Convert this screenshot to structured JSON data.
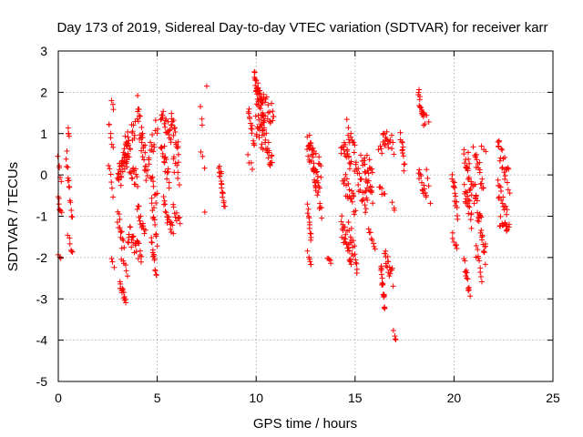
{
  "chart_data": {
    "type": "scatter",
    "title": "Day 173 of 2019, Sidereal Day-to-day VTEC variation (SDTVAR) for receiver karr",
    "xlabel": "GPS time / hours",
    "ylabel": "SDTVAR / TECUs",
    "xlim": [
      0,
      25
    ],
    "ylim": [
      -5,
      3
    ],
    "xticks": [
      0,
      5,
      10,
      15,
      20,
      25
    ],
    "yticks": [
      -5,
      -4,
      -3,
      -2,
      -1,
      0,
      1,
      2,
      3
    ],
    "grid": true,
    "marker": "+",
    "color": "#ff0000",
    "clusters": [
      {
        "x0": 0.0,
        "x1": 0.15,
        "y0": 0.4,
        "y1": -0.2,
        "wiggle": 0.1,
        "n": 5
      },
      {
        "x0": 0.0,
        "x1": 0.15,
        "y0": -0.6,
        "y1": -1.0,
        "wiggle": 0.1,
        "n": 7
      },
      {
        "x0": 0.0,
        "x1": 0.1,
        "y0": -1.9,
        "y1": -2.0,
        "wiggle": 0.05,
        "n": 3
      },
      {
        "x0": 0.5,
        "x1": 0.55,
        "y0": 1.1,
        "y1": 0.9,
        "wiggle": 0.05,
        "n": 4
      },
      {
        "x0": 0.4,
        "x1": 0.7,
        "y0": 0.5,
        "y1": -1.0,
        "wiggle": 0.2,
        "n": 14
      },
      {
        "x0": 0.5,
        "x1": 0.7,
        "y0": -1.5,
        "y1": -1.9,
        "wiggle": 0.1,
        "n": 6
      },
      {
        "x0": 2.55,
        "x1": 2.75,
        "y0": 1.3,
        "y1": 0.6,
        "wiggle": 0.15,
        "n": 6
      },
      {
        "x0": 2.7,
        "x1": 2.8,
        "y0": 1.75,
        "y1": 1.6,
        "wiggle": 0.05,
        "n": 3
      },
      {
        "x0": 2.55,
        "x1": 2.75,
        "y0": 0.2,
        "y1": -0.6,
        "wiggle": 0.15,
        "n": 6
      },
      {
        "x0": 2.7,
        "x1": 2.8,
        "y0": -2.0,
        "y1": -2.2,
        "wiggle": 0.05,
        "n": 3
      },
      {
        "x0": 3.0,
        "x1": 3.5,
        "y0": -0.2,
        "y1": 0.6,
        "wiggle": 0.35,
        "n": 34
      },
      {
        "x0": 3.3,
        "x1": 3.9,
        "y0": 0.6,
        "y1": 1.1,
        "wiggle": 0.3,
        "n": 20
      },
      {
        "x0": 3.5,
        "x1": 4.0,
        "y0": 0.5,
        "y1": -0.2,
        "wiggle": 0.3,
        "n": 20
      },
      {
        "x0": 3.0,
        "x1": 3.3,
        "y0": -1.0,
        "y1": -1.8,
        "wiggle": 0.2,
        "n": 14
      },
      {
        "x0": 3.2,
        "x1": 3.5,
        "y0": -2.0,
        "y1": -2.4,
        "wiggle": 0.1,
        "n": 6
      },
      {
        "x0": 3.1,
        "x1": 3.4,
        "y0": -2.6,
        "y1": -3.1,
        "wiggle": 0.1,
        "n": 14
      },
      {
        "x0": 3.5,
        "x1": 4.2,
        "y0": -1.4,
        "y1": -1.9,
        "wiggle": 0.25,
        "n": 26
      },
      {
        "x0": 4.0,
        "x1": 4.4,
        "y0": -0.8,
        "y1": -1.4,
        "wiggle": 0.2,
        "n": 14
      },
      {
        "x0": 4.0,
        "x1": 4.45,
        "y0": 1.6,
        "y1": 0.1,
        "wiggle": 0.35,
        "n": 28
      },
      {
        "x0": 4.5,
        "x1": 5.0,
        "y0": 0.2,
        "y1": 1.2,
        "wiggle": 0.3,
        "n": 16
      },
      {
        "x0": 4.6,
        "x1": 5.0,
        "y0": 0.1,
        "y1": -0.6,
        "wiggle": 0.2,
        "n": 10
      },
      {
        "x0": 4.7,
        "x1": 5.0,
        "y0": -0.6,
        "y1": -1.6,
        "wiggle": 0.2,
        "n": 12
      },
      {
        "x0": 4.7,
        "x1": 4.95,
        "y0": -1.6,
        "y1": -2.4,
        "wiggle": 0.15,
        "n": 14
      },
      {
        "x0": 5.2,
        "x1": 5.7,
        "y0": 1.5,
        "y1": 0.9,
        "wiggle": 0.2,
        "n": 20
      },
      {
        "x0": 5.2,
        "x1": 5.6,
        "y0": 0.8,
        "y1": -0.1,
        "wiggle": 0.25,
        "n": 18
      },
      {
        "x0": 5.7,
        "x1": 6.1,
        "y0": 1.4,
        "y1": 0.5,
        "wiggle": 0.25,
        "n": 18
      },
      {
        "x0": 5.8,
        "x1": 6.1,
        "y0": 0.4,
        "y1": -0.2,
        "wiggle": 0.2,
        "n": 8
      },
      {
        "x0": 5.3,
        "x1": 5.8,
        "y0": -0.7,
        "y1": -1.4,
        "wiggle": 0.2,
        "n": 18
      },
      {
        "x0": 5.8,
        "x1": 6.15,
        "y0": -0.8,
        "y1": -1.2,
        "wiggle": 0.15,
        "n": 10
      },
      {
        "x0": 7.2,
        "x1": 7.3,
        "y0": 1.6,
        "y1": 1.2,
        "wiggle": 0.1,
        "n": 3
      },
      {
        "x0": 7.5,
        "x1": 7.5,
        "y0": 2.15,
        "y1": 2.15,
        "wiggle": 0.0,
        "n": 1
      },
      {
        "x0": 7.2,
        "x1": 7.4,
        "y0": 0.6,
        "y1": 0.25,
        "wiggle": 0.1,
        "n": 3
      },
      {
        "x0": 7.4,
        "x1": 7.4,
        "y0": -0.9,
        "y1": -0.9,
        "wiggle": 0.0,
        "n": 1
      },
      {
        "x0": 8.1,
        "x1": 8.4,
        "y0": 0.3,
        "y1": -0.8,
        "wiggle": 0.2,
        "n": 20
      },
      {
        "x0": 9.6,
        "x1": 9.9,
        "y0": 1.6,
        "y1": 0.8,
        "wiggle": 0.2,
        "n": 14
      },
      {
        "x0": 9.6,
        "x1": 9.8,
        "y0": 0.4,
        "y1": 0.2,
        "wiggle": 0.1,
        "n": 4
      },
      {
        "x0": 9.9,
        "x1": 10.4,
        "y0": 2.3,
        "y1": 1.4,
        "wiggle": 0.3,
        "n": 34
      },
      {
        "x0": 10.0,
        "x1": 10.9,
        "y0": 1.9,
        "y1": 1.4,
        "wiggle": 0.3,
        "n": 30
      },
      {
        "x0": 10.0,
        "x1": 10.8,
        "y0": 1.2,
        "y1": 0.4,
        "wiggle": 0.35,
        "n": 40
      },
      {
        "x0": 12.6,
        "x1": 13.0,
        "y0": 1.0,
        "y1": -0.1,
        "wiggle": 0.3,
        "n": 20
      },
      {
        "x0": 12.6,
        "x1": 13.3,
        "y0": 0.7,
        "y1": 0.1,
        "wiggle": 0.3,
        "n": 20
      },
      {
        "x0": 12.9,
        "x1": 13.3,
        "y0": 0.1,
        "y1": -0.8,
        "wiggle": 0.25,
        "n": 18
      },
      {
        "x0": 12.6,
        "x1": 12.8,
        "y0": -0.8,
        "y1": -1.6,
        "wiggle": 0.15,
        "n": 12
      },
      {
        "x0": 12.6,
        "x1": 12.8,
        "y0": -1.9,
        "y1": -2.2,
        "wiggle": 0.1,
        "n": 6
      },
      {
        "x0": 13.6,
        "x1": 13.8,
        "y0": -2.0,
        "y1": -2.1,
        "wiggle": 0.05,
        "n": 5
      },
      {
        "x0": 14.3,
        "x1": 14.8,
        "y0": 0.8,
        "y1": 0.1,
        "wiggle": 0.25,
        "n": 20
      },
      {
        "x0": 14.6,
        "x1": 15.0,
        "y0": 1.2,
        "y1": 0.6,
        "wiggle": 0.2,
        "n": 12
      },
      {
        "x0": 14.4,
        "x1": 15.0,
        "y0": -0.1,
        "y1": -0.8,
        "wiggle": 0.25,
        "n": 24
      },
      {
        "x0": 14.3,
        "x1": 14.8,
        "y0": -1.2,
        "y1": -1.9,
        "wiggle": 0.3,
        "n": 26
      },
      {
        "x0": 14.7,
        "x1": 15.1,
        "y0": -1.3,
        "y1": -2.2,
        "wiggle": 0.25,
        "n": 18
      },
      {
        "x0": 15.0,
        "x1": 15.6,
        "y0": 0.2,
        "y1": -0.8,
        "wiggle": 0.3,
        "n": 24
      },
      {
        "x0": 15.3,
        "x1": 15.9,
        "y0": 0.6,
        "y1": -0.1,
        "wiggle": 0.3,
        "n": 16
      },
      {
        "x0": 15.5,
        "x1": 15.9,
        "y0": -0.1,
        "y1": -0.6,
        "wiggle": 0.2,
        "n": 12
      },
      {
        "x0": 15.7,
        "x1": 16.0,
        "y0": -1.3,
        "y1": -1.7,
        "wiggle": 0.1,
        "n": 8
      },
      {
        "x0": 16.2,
        "x1": 16.5,
        "y0": -0.2,
        "y1": -0.5,
        "wiggle": 0.1,
        "n": 6
      },
      {
        "x0": 16.2,
        "x1": 16.6,
        "y0": 0.5,
        "y1": 0.9,
        "wiggle": 0.15,
        "n": 8
      },
      {
        "x0": 16.4,
        "x1": 16.9,
        "y0": 0.9,
        "y1": 0.8,
        "wiggle": 0.2,
        "n": 14
      },
      {
        "x0": 16.3,
        "x1": 16.5,
        "y0": -2.2,
        "y1": -3.2,
        "wiggle": 0.15,
        "n": 18
      },
      {
        "x0": 16.5,
        "x1": 16.9,
        "y0": -1.9,
        "y1": -2.5,
        "wiggle": 0.2,
        "n": 18
      },
      {
        "x0": 16.9,
        "x1": 17.0,
        "y0": -0.7,
        "y1": -0.9,
        "wiggle": 0.05,
        "n": 3
      },
      {
        "x0": 16.95,
        "x1": 17.05,
        "y0": -3.8,
        "y1": -4.0,
        "wiggle": 0.05,
        "n": 4
      },
      {
        "x0": 17.3,
        "x1": 17.5,
        "y0": 1.0,
        "y1": 0.1,
        "wiggle": 0.2,
        "n": 12
      },
      {
        "x0": 16.9,
        "x1": 17.0,
        "y0": 0.5,
        "y1": 0.5,
        "wiggle": 0.0,
        "n": 1
      },
      {
        "x0": 18.2,
        "x1": 18.5,
        "y0": 2.0,
        "y1": 1.2,
        "wiggle": 0.2,
        "n": 20
      },
      {
        "x0": 18.5,
        "x1": 18.7,
        "y0": 1.5,
        "y1": 1.3,
        "wiggle": 0.05,
        "n": 3
      },
      {
        "x0": 18.2,
        "x1": 18.6,
        "y0": 0.1,
        "y1": -0.6,
        "wiggle": 0.2,
        "n": 14
      },
      {
        "x0": 18.6,
        "x1": 18.8,
        "y0": 0.1,
        "y1": -0.6,
        "wiggle": 0.1,
        "n": 4
      },
      {
        "x0": 19.9,
        "x1": 20.2,
        "y0": 0.0,
        "y1": -1.0,
        "wiggle": 0.2,
        "n": 16
      },
      {
        "x0": 19.9,
        "x1": 20.15,
        "y0": -1.5,
        "y1": -1.8,
        "wiggle": 0.1,
        "n": 6
      },
      {
        "x0": 20.5,
        "x1": 20.9,
        "y0": 0.6,
        "y1": -0.4,
        "wiggle": 0.25,
        "n": 20
      },
      {
        "x0": 20.5,
        "x1": 20.9,
        "y0": -0.3,
        "y1": -1.1,
        "wiggle": 0.25,
        "n": 18
      },
      {
        "x0": 20.5,
        "x1": 20.8,
        "y0": -2.1,
        "y1": -2.9,
        "wiggle": 0.15,
        "n": 14
      },
      {
        "x0": 20.7,
        "x1": 20.8,
        "y0": 0.5,
        "y1": 0.3,
        "wiggle": 0.05,
        "n": 3
      },
      {
        "x0": 21.0,
        "x1": 21.5,
        "y0": 0.6,
        "y1": -0.3,
        "wiggle": 0.25,
        "n": 18
      },
      {
        "x0": 21.0,
        "x1": 21.6,
        "y0": -0.3,
        "y1": -1.9,
        "wiggle": 0.3,
        "n": 34
      },
      {
        "x0": 21.1,
        "x1": 21.4,
        "y0": -1.8,
        "y1": -2.5,
        "wiggle": 0.15,
        "n": 10
      },
      {
        "x0": 21.4,
        "x1": 21.6,
        "y0": 0.7,
        "y1": 0.6,
        "wiggle": 0.05,
        "n": 3
      },
      {
        "x0": 22.2,
        "x1": 22.8,
        "y0": 0.8,
        "y1": -0.2,
        "wiggle": 0.3,
        "n": 24
      },
      {
        "x0": 22.2,
        "x1": 22.7,
        "y0": -0.3,
        "y1": -1.1,
        "wiggle": 0.25,
        "n": 18
      },
      {
        "x0": 22.3,
        "x1": 22.8,
        "y0": -1.1,
        "y1": -1.3,
        "wiggle": 0.15,
        "n": 14
      }
    ]
  }
}
